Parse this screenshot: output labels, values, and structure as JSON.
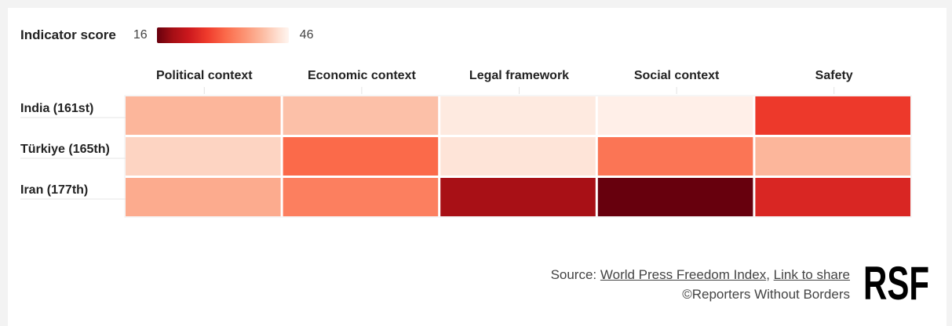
{
  "legend": {
    "title": "Indicator score",
    "min_label": "16",
    "max_label": "46",
    "min_value": 16,
    "max_value": 46,
    "scale_colors": [
      "#67000d",
      "#a50f15",
      "#cb181d",
      "#ef3b2c",
      "#fb6a4a",
      "#fc9272",
      "#fcbba1",
      "#fee0d2",
      "#fff5f0"
    ]
  },
  "chart_data": {
    "type": "heatmap",
    "columns": [
      "Political context",
      "Economic context",
      "Legal framework",
      "Social context",
      "Safety"
    ],
    "rows": [
      "India (161st)",
      "Türkiye (165th)",
      "Iran (177th)"
    ],
    "values": [
      [
        38,
        39,
        44,
        45,
        27
      ],
      [
        41,
        31,
        43,
        32,
        38
      ],
      [
        37,
        33,
        20,
        16,
        25
      ]
    ],
    "value_range": [
      16,
      46
    ]
  },
  "footer": {
    "source_prefix": "Source: ",
    "source_link": "World Press Freedom Index",
    "separator": ", ",
    "share_link": "Link to share",
    "copyright": "©Reporters Without Borders",
    "logo_text": "RSF"
  }
}
